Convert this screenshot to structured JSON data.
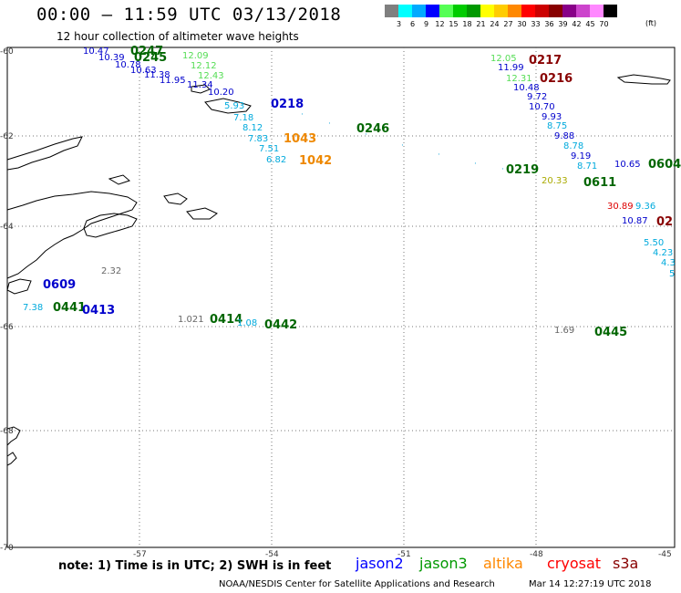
{
  "title": "00:00 — 11:59 UTC 03/13/2018",
  "subtitle": "12 hour collection of altimeter wave heights",
  "legend": {
    "unit": "(ft)",
    "colors": [
      "#7f7f7f",
      "#00ffff",
      "#00aaff",
      "#0000ff",
      "#55ff55",
      "#00cc00",
      "#009900",
      "#ffff00",
      "#ffcc00",
      "#ff8800",
      "#ff0000",
      "#cc0000",
      "#880000",
      "#880088",
      "#cc44cc",
      "#ff88ff",
      "#000000"
    ],
    "ticks": [
      "3",
      "6",
      "9",
      "12",
      "15",
      "18",
      "21",
      "24",
      "27",
      "30",
      "33",
      "36",
      "39",
      "42",
      "45",
      "70"
    ]
  },
  "axes": {
    "lat_labels": [
      "-60",
      "-62",
      "-64",
      "-66",
      "-68",
      "-70"
    ],
    "lon_labels": [
      "-57",
      "-54",
      "-51",
      "-48",
      "-45"
    ]
  },
  "labels": [
    {
      "t": "10.47",
      "c": "#0000cc"
    },
    {
      "t": "0247",
      "c": "#006600",
      "pass": true
    },
    {
      "t": "10.39",
      "c": "#0000cc"
    },
    {
      "t": "0245",
      "c": "#006600",
      "pass": true
    },
    {
      "t": "10.78",
      "c": "#0000cc"
    },
    {
      "t": "10.63",
      "c": "#0000cc"
    },
    {
      "t": "11.38",
      "c": "#0000cc"
    },
    {
      "t": "11.95",
      "c": "#0000cc"
    },
    {
      "t": "11.34",
      "c": "#0000cc"
    },
    {
      "t": "10.20",
      "c": "#0000cc"
    },
    {
      "t": "12.09",
      "c": "#55dd55"
    },
    {
      "t": "12.12",
      "c": "#55dd55"
    },
    {
      "t": "12.43",
      "c": "#55dd55"
    },
    {
      "t": "5.93",
      "c": "#00aadd"
    },
    {
      "t": "7.18",
      "c": "#00aadd"
    },
    {
      "t": "8.12",
      "c": "#00aadd"
    },
    {
      "t": "7.83",
      "c": "#00aadd"
    },
    {
      "t": "7.51",
      "c": "#00aadd"
    },
    {
      "t": "6.82",
      "c": "#00aadd"
    },
    {
      "t": "0218",
      "c": "#0000cc",
      "pass": true
    },
    {
      "t": "1043",
      "c": "#ee8800",
      "pass": true
    },
    {
      "t": "1042",
      "c": "#ee8800",
      "pass": true
    },
    {
      "t": "0246",
      "c": "#006600",
      "pass": true
    },
    {
      "t": "12.05",
      "c": "#55dd55"
    },
    {
      "t": "0217",
      "c": "#880000",
      "pass": true
    },
    {
      "t": "11.99",
      "c": "#0000cc"
    },
    {
      "t": "12.31",
      "c": "#55dd55"
    },
    {
      "t": "0216",
      "c": "#880000",
      "pass": true
    },
    {
      "t": "10.48",
      "c": "#0000cc"
    },
    {
      "t": "9.72",
      "c": "#0000cc"
    },
    {
      "t": "10.70",
      "c": "#0000cc"
    },
    {
      "t": "9.93",
      "c": "#0000cc"
    },
    {
      "t": "8.75",
      "c": "#00aadd"
    },
    {
      "t": "9.88",
      "c": "#0000cc"
    },
    {
      "t": "8.78",
      "c": "#00aadd"
    },
    {
      "t": "9.19",
      "c": "#0000cc"
    },
    {
      "t": "8.71",
      "c": "#00aadd"
    },
    {
      "t": "0219",
      "c": "#006600",
      "pass": true
    },
    {
      "t": "0611",
      "c": "#006600",
      "pass": true
    },
    {
      "t": "20.33",
      "c": "#aaaa00"
    },
    {
      "t": "10.65",
      "c": "#0000cc"
    },
    {
      "t": "0604",
      "c": "#006600",
      "pass": true
    },
    {
      "t": "30.89",
      "c": "#dd0000"
    },
    {
      "t": "9.36",
      "c": "#00aadd"
    },
    {
      "t": "10.87",
      "c": "#0000cc"
    },
    {
      "t": "02",
      "c": "#880000",
      "pass": true
    },
    {
      "t": "5.50",
      "c": "#00aadd"
    },
    {
      "t": "4.23",
      "c": "#00aadd"
    },
    {
      "t": "4.3",
      "c": "#00aadd"
    },
    {
      "t": "5",
      "c": "#00aadd"
    },
    {
      "t": "2.32",
      "c": "#666666"
    },
    {
      "t": "0609",
      "c": "#0000cc",
      "pass": true
    },
    {
      "t": "7.38",
      "c": "#00aadd"
    },
    {
      "t": "0441",
      "c": "#006600",
      "pass": true
    },
    {
      "t": "0413",
      "c": "#0000cc",
      "pass": true
    },
    {
      "t": "1.021",
      "c": "#666666"
    },
    {
      "t": "0414",
      "c": "#006600",
      "pass": true
    },
    {
      "t": "1.08",
      "c": "#00aadd"
    },
    {
      "t": "0442",
      "c": "#006600",
      "pass": true
    },
    {
      "t": "0445",
      "c": "#006600",
      "pass": true
    },
    {
      "t": "1.69",
      "c": "#666666"
    }
  ],
  "note": "note: 1) Time is in UTC; 2) SWH is in feet",
  "satellites": [
    {
      "name": "jason2",
      "color": "#0000ff"
    },
    {
      "name": "jason3",
      "color": "#009900"
    },
    {
      "name": "altika",
      "color": "#ff8800"
    },
    {
      "name": "cryosat",
      "color": "#ff0000"
    },
    {
      "name": "s3a",
      "color": "#880000"
    }
  ],
  "credit": "NOAA/NESDIS Center for Satellite Applications and Research",
  "generated": "Mar 14 12:27:19 UTC 2018"
}
